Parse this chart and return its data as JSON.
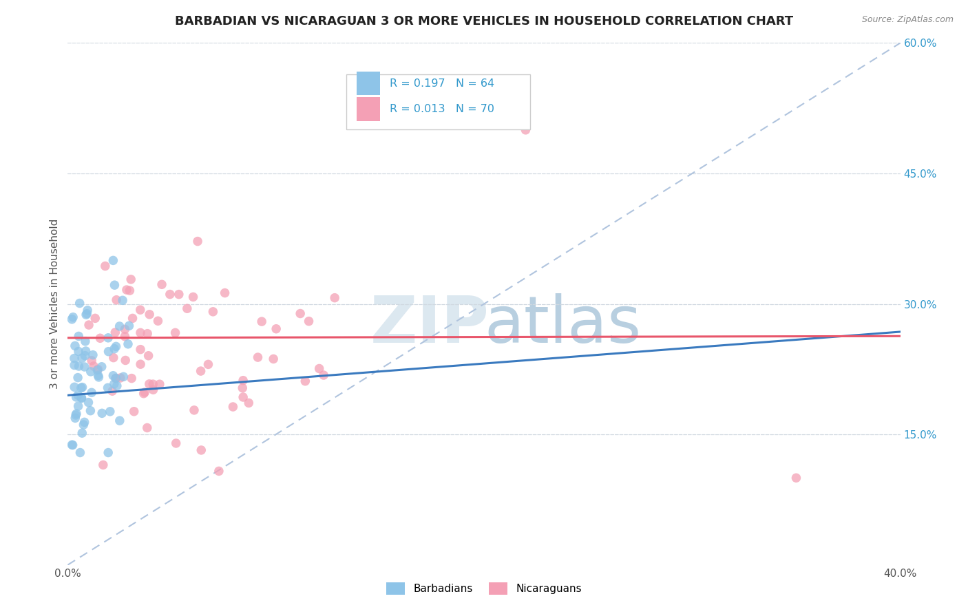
{
  "title": "BARBADIAN VS NICARAGUAN 3 OR MORE VEHICLES IN HOUSEHOLD CORRELATION CHART",
  "source": "Source: ZipAtlas.com",
  "ylabel": "3 or more Vehicles in Household",
  "xlim": [
    0.0,
    0.4
  ],
  "ylim": [
    0.0,
    0.6
  ],
  "xticks": [
    0.0,
    0.05,
    0.1,
    0.15,
    0.2,
    0.25,
    0.3,
    0.35,
    0.4
  ],
  "xticklabels": [
    "0.0%",
    "",
    "",
    "",
    "",
    "",
    "",
    "",
    "40.0%"
  ],
  "ytick_right_vals": [
    0.15,
    0.3,
    0.45,
    0.6
  ],
  "ytick_right_labels": [
    "15.0%",
    "30.0%",
    "45.0%",
    "60.0%"
  ],
  "R_barbadian": 0.197,
  "N_barbadian": 64,
  "R_nicaraguan": 0.013,
  "N_nicaraguan": 70,
  "color_barbadian": "#8ec4e8",
  "color_nicaraguan": "#f4a0b5",
  "trendline_barbadian_color": "#3a7abf",
  "trendline_nicaraguan_color": "#e8566b",
  "trendline_dashed_color": "#b0c4de",
  "background_color": "#ffffff",
  "grid_color": "#d0d8e0",
  "watermark_zip_color": "#dce8f0",
  "watermark_atlas_color": "#b8cfe0",
  "legend_border_color": "#cccccc",
  "right_tick_color": "#3399cc",
  "title_color": "#222222",
  "source_color": "#888888",
  "ylabel_color": "#555555",
  "xtick_color": "#555555"
}
